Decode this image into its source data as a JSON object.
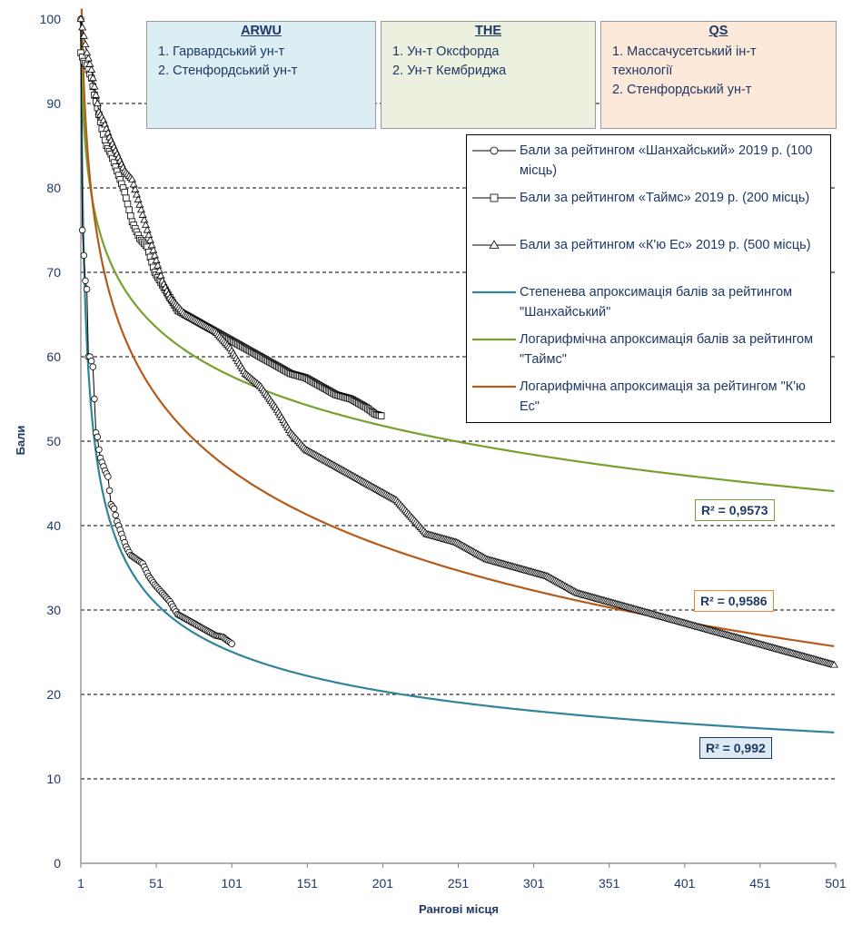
{
  "chart_data": {
    "type": "line",
    "ylabel": "Бали",
    "xlabel": "Рангові місця",
    "xlim": [
      1,
      501
    ],
    "ylim": [
      0,
      100
    ],
    "x_ticks": [
      "1",
      "51",
      "101",
      "151",
      "201",
      "251",
      "301",
      "351",
      "401",
      "451",
      "501"
    ],
    "y_ticks": [
      "0",
      "10",
      "20",
      "30",
      "40",
      "50",
      "60",
      "70",
      "80",
      "90",
      "100"
    ],
    "grid": "horizontal dashed",
    "legend_position": "right, upper-middle",
    "series": [
      {
        "name": "Бали за рейтингом «Шанхайський» 2019 р. (100 місць)",
        "marker": "circle",
        "color": "#000000",
        "points": [
          [
            1,
            100
          ],
          [
            2,
            75
          ],
          [
            3,
            72
          ],
          [
            4,
            69
          ],
          [
            5,
            68
          ],
          [
            6,
            60
          ],
          [
            7,
            60
          ],
          [
            8,
            59.5
          ],
          [
            9,
            58.8
          ],
          [
            10,
            55
          ],
          [
            11,
            51
          ],
          [
            12,
            50.5
          ],
          [
            13,
            49
          ],
          [
            14,
            48
          ],
          [
            15,
            47.5
          ],
          [
            17,
            46.5
          ],
          [
            19,
            45.8
          ],
          [
            21,
            42.5
          ],
          [
            23,
            42
          ],
          [
            25,
            40.5
          ],
          [
            28,
            39
          ],
          [
            31,
            37.5
          ],
          [
            34,
            36.5
          ],
          [
            38,
            36
          ],
          [
            42,
            35.5
          ],
          [
            46,
            34
          ],
          [
            50,
            33
          ],
          [
            55,
            32
          ],
          [
            60,
            31
          ],
          [
            65,
            29.5
          ],
          [
            70,
            29
          ],
          [
            75,
            28.5
          ],
          [
            80,
            28
          ],
          [
            85,
            27.5
          ],
          [
            90,
            27
          ],
          [
            95,
            26.8
          ],
          [
            101,
            26
          ]
        ]
      },
      {
        "name": "Бали за рейтингом «Таймс» 2019 р. (200 місць)",
        "marker": "square",
        "color": "#000000",
        "points": [
          [
            1,
            96
          ],
          [
            3,
            95
          ],
          [
            5,
            94.5
          ],
          [
            8,
            93
          ],
          [
            10,
            91
          ],
          [
            12,
            89.5
          ],
          [
            15,
            87
          ],
          [
            18,
            85
          ],
          [
            21,
            84
          ],
          [
            25,
            82
          ],
          [
            30,
            79.5
          ],
          [
            35,
            76
          ],
          [
            40,
            74
          ],
          [
            45,
            73
          ],
          [
            50,
            70
          ],
          [
            55,
            68.5
          ],
          [
            60,
            67
          ],
          [
            65,
            65.5
          ],
          [
            70,
            65
          ],
          [
            80,
            64
          ],
          [
            90,
            63
          ],
          [
            100,
            62
          ],
          [
            110,
            61
          ],
          [
            120,
            60
          ],
          [
            130,
            59
          ],
          [
            140,
            58
          ],
          [
            150,
            57.5
          ],
          [
            160,
            56.5
          ],
          [
            170,
            55.5
          ],
          [
            180,
            55
          ],
          [
            190,
            54
          ],
          [
            196,
            53.2
          ],
          [
            200,
            53
          ]
        ]
      },
      {
        "name": "Бали за рейтингом «К'ю Ес» 2019 р. (500 місць)",
        "marker": "triangle",
        "color": "#000000",
        "points": [
          [
            1,
            100
          ],
          [
            3,
            98
          ],
          [
            5,
            96
          ],
          [
            8,
            94
          ],
          [
            10,
            92
          ],
          [
            13,
            89
          ],
          [
            16,
            88
          ],
          [
            20,
            86
          ],
          [
            25,
            84
          ],
          [
            30,
            82
          ],
          [
            35,
            81
          ],
          [
            40,
            78
          ],
          [
            45,
            75
          ],
          [
            50,
            72
          ],
          [
            55,
            69
          ],
          [
            60,
            67
          ],
          [
            65,
            66
          ],
          [
            70,
            65
          ],
          [
            80,
            64
          ],
          [
            90,
            63
          ],
          [
            100,
            61
          ],
          [
            110,
            58
          ],
          [
            120,
            56.5
          ],
          [
            130,
            54
          ],
          [
            140,
            51
          ],
          [
            150,
            49
          ],
          [
            160,
            48
          ],
          [
            170,
            47
          ],
          [
            180,
            46
          ],
          [
            190,
            45
          ],
          [
            200,
            44
          ],
          [
            210,
            43
          ],
          [
            220,
            41
          ],
          [
            230,
            39
          ],
          [
            250,
            38
          ],
          [
            270,
            36
          ],
          [
            290,
            35
          ],
          [
            310,
            34
          ],
          [
            330,
            32
          ],
          [
            350,
            31
          ],
          [
            370,
            30
          ],
          [
            390,
            29
          ],
          [
            410,
            28
          ],
          [
            430,
            27
          ],
          [
            450,
            26
          ],
          [
            470,
            25
          ],
          [
            490,
            24
          ],
          [
            500,
            23.5
          ]
        ]
      },
      {
        "name": "Степенева апроксимація балів за рейтингом \"Шанхайський\"",
        "marker": "none",
        "color": "#31849b",
        "fit": "power",
        "coef": [
          100,
          -0.3
        ]
      },
      {
        "name": "Логарифмічна апроксимація балів за рейтингом \"Таймс\"",
        "marker": "none",
        "color": "#77a02e",
        "fit": "log",
        "coef": [
          -8.5,
          96.9
        ]
      },
      {
        "name": "Логарифмічна апроксимація за рейтингом \"К'ю Ес\"",
        "marker": "none",
        "color": "#b45a1a",
        "fit": "log",
        "coef": [
          -13,
          106.5
        ]
      }
    ],
    "r2_labels": [
      {
        "text": "R² = 0,9573",
        "border": "#77a02e",
        "bg": "#ffffff"
      },
      {
        "text": "R² = 0,9586",
        "border": "#e3883a",
        "bg": "#ffffff"
      },
      {
        "text": "R² = 0,992",
        "border": "#1f3864",
        "bg": "#deeaf1"
      }
    ]
  },
  "rankings": [
    {
      "title": "ARWU",
      "bg": "#daeef3",
      "items": [
        "1. Гарвардський ун-т",
        "2. Стенфордський ун-т"
      ]
    },
    {
      "title": "THE",
      "bg": "#ebf1de",
      "items": [
        "1. Ун-т Оксфорда",
        "2. Ун-т Кембриджа"
      ]
    },
    {
      "title": "QS",
      "bg": "#fde9d9",
      "items": [
        "1. Массачусетський ін-т технології",
        "2. Стенфордський ун-т"
      ]
    }
  ]
}
